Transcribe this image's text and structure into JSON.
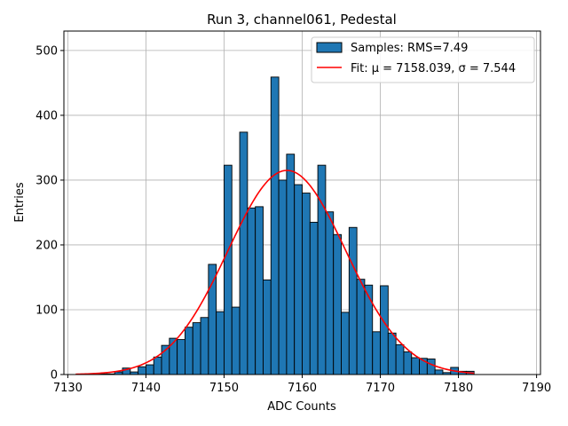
{
  "chart_data": {
    "type": "bar",
    "title": "Run 3, channel061, Pedestal",
    "xlabel": "ADC Counts",
    "ylabel": "Entries",
    "xlim": [
      7129.5,
      7190.5
    ],
    "ylim": [
      0,
      530
    ],
    "xticks": [
      7130,
      7140,
      7150,
      7160,
      7170,
      7180,
      7190
    ],
    "yticks": [
      0,
      100,
      200,
      300,
      400,
      500
    ],
    "grid": true,
    "legend_position": "top-right",
    "bar_color": "#1f77b4",
    "fit_color": "#ff0000",
    "bin_width": 1,
    "bins": {
      "x_start": [
        7131,
        7132,
        7133,
        7134,
        7135,
        7136,
        7137,
        7138,
        7139,
        7140,
        7141,
        7142,
        7143,
        7144,
        7145,
        7146,
        7147,
        7148,
        7149,
        7150,
        7151,
        7152,
        7153,
        7154,
        7155,
        7156,
        7157,
        7158,
        7159,
        7160,
        7161,
        7162,
        7163,
        7164,
        7165,
        7166,
        7167,
        7168,
        7169,
        7170,
        7171,
        7172,
        7173,
        7174,
        7175,
        7176,
        7177,
        7178,
        7179,
        7180,
        7181
      ],
      "values": [
        0,
        0,
        1,
        1,
        1,
        4,
        10,
        4,
        12,
        15,
        27,
        45,
        56,
        54,
        73,
        80,
        88,
        170,
        97,
        323,
        104,
        374,
        257,
        259,
        146,
        459,
        300,
        340,
        293,
        280,
        235,
        323,
        251,
        216,
        96,
        227,
        147,
        138,
        66,
        137,
        64,
        46,
        35,
        26,
        25,
        24,
        7,
        3,
        11,
        5,
        5
      ]
    },
    "fit": {
      "mu": 7158.039,
      "sigma": 7.544,
      "peak": 315,
      "x_range": [
        7131,
        7182
      ]
    },
    "legend": [
      {
        "label": "Samples: RMS=7.49",
        "kind": "patch"
      },
      {
        "label": "Fit: μ = 7158.039, σ = 7.544",
        "kind": "line"
      }
    ]
  }
}
